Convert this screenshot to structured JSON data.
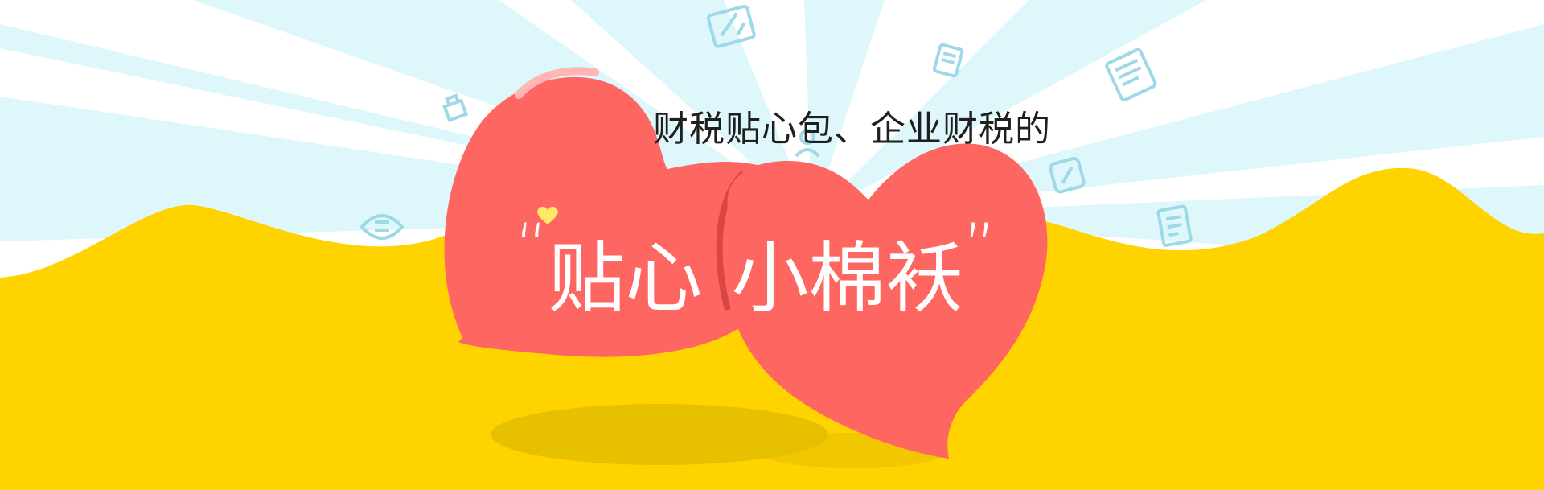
{
  "banner": {
    "subtitle": "财税贴心包、企业财税的",
    "title_open_quote": "“",
    "title_part1": "贴心",
    "title_part2": "小棉袄",
    "title_close_quote": "”"
  },
  "colors": {
    "background_white": "#ffffff",
    "ray_blue": "#d8f6fb",
    "wave_yellow": "#ffd300",
    "heart_red": "#fe6662",
    "heart_shadow_red": "#d94745",
    "ground_shadow": "#e3bd00",
    "icon_blue": "#9fd9e8",
    "mini_heart_yellow": "#ffe866"
  },
  "icons": [
    "tax-document-icon",
    "pencil-note-icon",
    "receipt-icon",
    "edit-pen-icon",
    "tax-form-icon",
    "building-icon",
    "invoice-badge-icon",
    "person-icon"
  ]
}
